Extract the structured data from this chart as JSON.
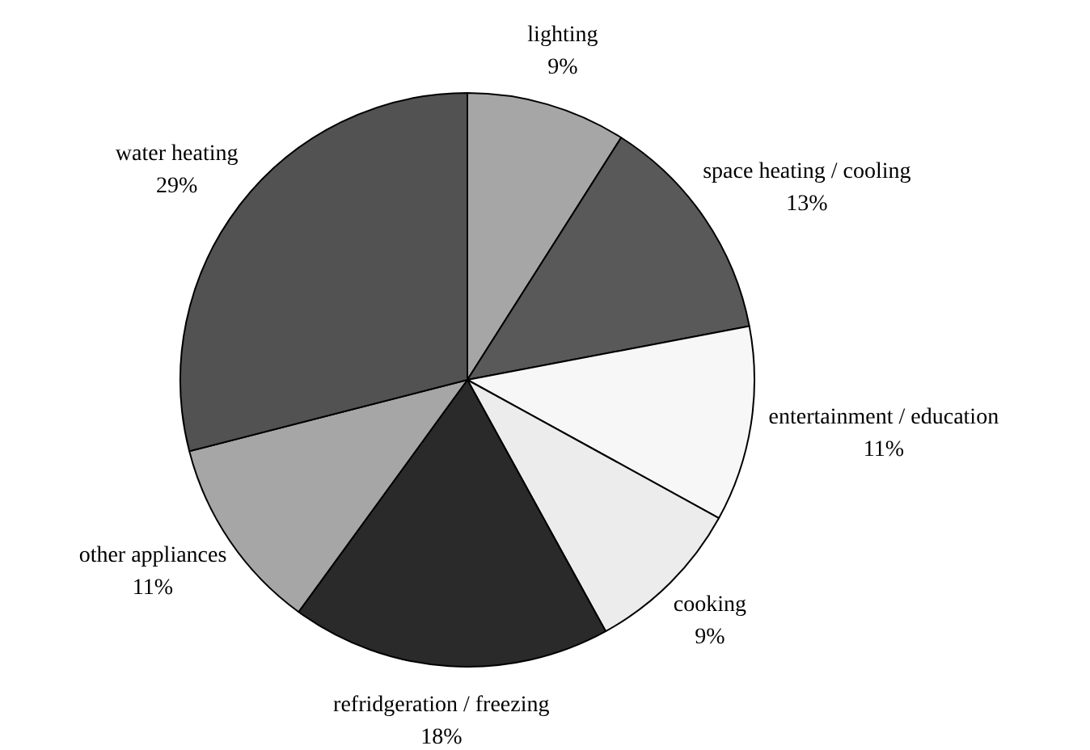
{
  "chart_data": {
    "type": "pie",
    "categories": [
      "lighting",
      "space heating / cooling",
      "entertainment / education",
      "cooking",
      "refridgeration / freezing",
      "other appliances",
      "water heating"
    ],
    "values": [
      9,
      13,
      11,
      9,
      18,
      11,
      29
    ],
    "value_labels": [
      "9%",
      "13%",
      "11%",
      "9%",
      "18%",
      "11%",
      "29%"
    ],
    "colors": [
      "#a6a6a6",
      "#595959",
      "#f7f7f7",
      "#ececec",
      "#2a2a2a",
      "#a6a6a6",
      "#525252"
    ],
    "legend": false
  }
}
